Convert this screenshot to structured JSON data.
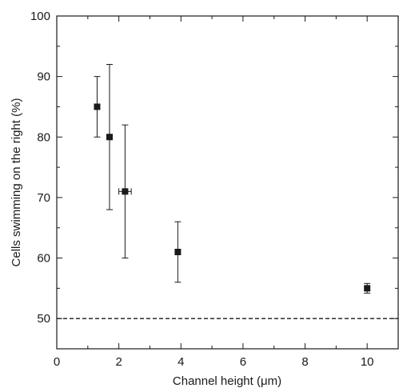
{
  "chart_data": {
    "type": "scatter",
    "xlabel": "Channel height  (μm)",
    "ylabel": "Cells swimming on the right (%)",
    "xlim": [
      0,
      11
    ],
    "ylim": [
      45,
      100
    ],
    "xticks": [
      0,
      2,
      4,
      6,
      8,
      10
    ],
    "yticks": [
      50,
      60,
      70,
      80,
      90,
      100
    ],
    "reference_line": {
      "y": 50,
      "style": "dashed"
    },
    "grid": false,
    "marker": "square",
    "color": "#1a1a1a",
    "points": [
      {
        "x": 1.3,
        "y": 85,
        "y_err_low": 80,
        "y_err_high": 90
      },
      {
        "x": 1.7,
        "y": 80,
        "y_err_low": 68,
        "y_err_high": 92
      },
      {
        "x": 2.2,
        "y": 71,
        "y_err_low": 60,
        "y_err_high": 82,
        "x_err_low": 2.0,
        "x_err_high": 2.4
      },
      {
        "x": 3.9,
        "y": 61,
        "y_err_low": 56,
        "y_err_high": 66
      },
      {
        "x": 10.0,
        "y": 55,
        "y_err_low": 54.2,
        "y_err_high": 55.8
      }
    ]
  }
}
